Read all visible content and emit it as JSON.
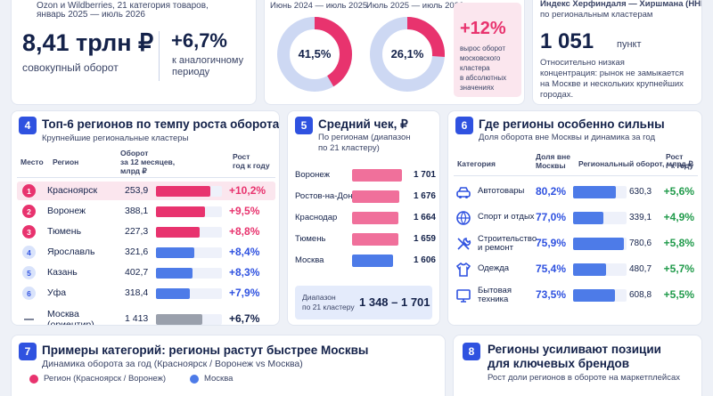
{
  "c1": {
    "header_line": "Ozon и Wildberries, 21 категория товаров,",
    "period": "январь 2025 — июль 2026",
    "turnover": "8,41 трлн ₽",
    "turnover_label": "совокупный оборот",
    "growth": "+6,7%",
    "growth_label_1": "к аналогичному",
    "growth_label_2": "периоду"
  },
  "c2": {
    "period_a": "Июнь 2024 — июль 2025",
    "period_b": "Июль 2025 — июль 2026",
    "donut_a": "41,5%",
    "donut_a_share": 0.415,
    "donut_b": "26,1%",
    "donut_b_share": 0.261,
    "increase": "+12%",
    "increase_note": [
      "вырос оборот",
      "московского кластера",
      "в абсолютных",
      "значениях"
    ]
  },
  "c3": {
    "header_1": "Индекс Херфиндаля — Хиршмана (HHI)",
    "header_2": "по региональным кластерам",
    "value": "1 051",
    "unit": "пункт",
    "note": [
      "Относительно низкая",
      "концентрация: рынок не замыкается",
      "на Москве и нескольких крупнейших",
      "городах."
    ]
  },
  "p4": {
    "num": "4",
    "title": "Топ-6 регионов по темпу роста оборота",
    "subtitle": "Крупнейшие региональные кластеры",
    "col_place": "Место",
    "col_region": "Регион",
    "col_turnover": [
      "Оборот",
      "за 12 месяцев,",
      "млрд ₽"
    ],
    "col_growth": [
      "Рост",
      "год к году"
    ],
    "rows": [
      {
        "rank": "1",
        "name": "Красноярск",
        "value": "253,9",
        "fill": 0.82,
        "growth": "+10,2%"
      },
      {
        "rank": "2",
        "name": "Воронеж",
        "value": "388,1",
        "fill": 0.74,
        "growth": "+9,5%"
      },
      {
        "rank": "3",
        "name": "Тюмень",
        "value": "227,3",
        "fill": 0.66,
        "growth": "+8,8%"
      },
      {
        "rank": "4",
        "name": "Ярославль",
        "value": "321,6",
        "fill": 0.58,
        "growth": "+8,4%"
      },
      {
        "rank": "5",
        "name": "Казань",
        "value": "402,7",
        "fill": 0.56,
        "growth": "+8,3%"
      },
      {
        "rank": "6",
        "name": "Уфа",
        "value": "318,4",
        "fill": 0.52,
        "growth": "+7,9%"
      }
    ],
    "moscow": {
      "rank": "—",
      "name": "Москва",
      "name_2": "(ориентир)",
      "value": "1 413",
      "fill": 0.7,
      "growth": "+6,7%"
    }
  },
  "p5": {
    "num": "5",
    "title": "Средний чек, ₽",
    "subtitle": [
      "По регионам (диапазон",
      "по 21 кластеру)"
    ],
    "rows": [
      {
        "name": "Воронеж",
        "value": "1 701",
        "level": 1701
      },
      {
        "name": "Ростов-на-Дону",
        "value": "1 676",
        "level": 1676
      },
      {
        "name": "Краснодар",
        "value": "1 664",
        "level": 1664
      },
      {
        "name": "Тюмень",
        "value": "1 659",
        "level": 1659
      },
      {
        "name": "Москва",
        "value": "1 606",
        "level": 1606
      }
    ],
    "range_label": [
      "Диапазон",
      "по 21 кластеру"
    ],
    "range_value": "1 348 – 1 701"
  },
  "p6": {
    "num": "6",
    "title": "Где регионы особенно сильны",
    "subtitle": "Доля оборота вне Москвы и динамика за год",
    "col_category": "Категория",
    "col_share": [
      "Доля вне",
      "Москвы"
    ],
    "col_turnover": "Региональный оборот, млрд ₽",
    "col_growth": [
      "Рост",
      "г к году"
    ],
    "rows": [
      {
        "icon": "car-icon",
        "name": "Автотовары",
        "name_2": "",
        "share": "80,2%",
        "fill": 0.8,
        "value": "630,3",
        "growth": "+5,6%"
      },
      {
        "icon": "ball-icon",
        "name": "Спорт и отдых",
        "name_2": "",
        "share": "77,0%",
        "fill": 0.56,
        "value": "339,1",
        "growth": "+4,9%"
      },
      {
        "icon": "tools-icon",
        "name": "Строительство",
        "name_2": "и ремонт",
        "share": "75,9%",
        "fill": 0.95,
        "value": "780,6",
        "growth": "+5,8%"
      },
      {
        "icon": "shirt-icon",
        "name": "Одежда",
        "name_2": "",
        "share": "75,4%",
        "fill": 0.62,
        "value": "480,7",
        "growth": "+5,7%"
      },
      {
        "icon": "tv-icon",
        "name": "Бытовая",
        "name_2": "техника",
        "share": "73,5%",
        "fill": 0.78,
        "value": "608,8",
        "growth": "+5,5%"
      }
    ]
  },
  "p7": {
    "num": "7",
    "title": "Примеры категорий: регионы растут быстрее Москвы",
    "subtitle": "Динамика оборота за год (Красноярск / Воронеж vs Москва)",
    "legend_a": "Регион (Красноярск / Воронеж)",
    "legend_b": "Москва"
  },
  "p8": {
    "num": "8",
    "title_1": "Регионы усиливают позиции",
    "title_2": "для ключевых брендов",
    "subtitle": "Рост доли регионов в обороте на маркетплейсах"
  },
  "colors": {
    "accent": "#2f52e0",
    "pink": "#e8336e",
    "green": "#1f9a4a",
    "blue_bar": "#4d7be8",
    "grey_bar": "#9aa0ac"
  }
}
